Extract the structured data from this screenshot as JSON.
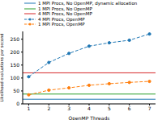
{
  "chart_data": {
    "type": "line",
    "x_label": "OpenMP Threads",
    "y_label": "Likelihood evaluations per second",
    "x": [
      1,
      2,
      3,
      4,
      5,
      6,
      7
    ],
    "xlim": [
      0.7,
      7.3
    ],
    "xticks": [
      1,
      2,
      3,
      4,
      5,
      6,
      7
    ],
    "ylim": [
      0,
      280
    ],
    "yticks": [
      0,
      50,
      100,
      150,
      200,
      250
    ],
    "legend": "upper left",
    "series": [
      {
        "name": "1 MPI Procs, No OpenMP, dynamic allocation",
        "type": "hline",
        "color": "#1f77b4",
        "line_style": "solid",
        "y": 18
      },
      {
        "name": "1 MPI Procs, No OpenMP",
        "type": "hline",
        "color": "#2ca02c",
        "line_style": "solid",
        "y": 38
      },
      {
        "name": "4 MPI Procs, No OpenMP",
        "type": "hline",
        "color": "#d62728",
        "line_style": "solid",
        "y": 120
      },
      {
        "name": "4 MPI Procs, OpenMP",
        "type": "line",
        "color": "#1f77b4",
        "line_style": "dashed",
        "marker": "o",
        "values": [
          105,
          160,
          195,
          223,
          236,
          246,
          270
        ]
      },
      {
        "name": "1 MPI Procs, OpenMP",
        "type": "line",
        "color": "#ff7f0e",
        "line_style": "dashed",
        "marker": "o",
        "values": [
          35,
          53,
          62,
          72,
          78,
          83,
          87
        ]
      }
    ]
  }
}
